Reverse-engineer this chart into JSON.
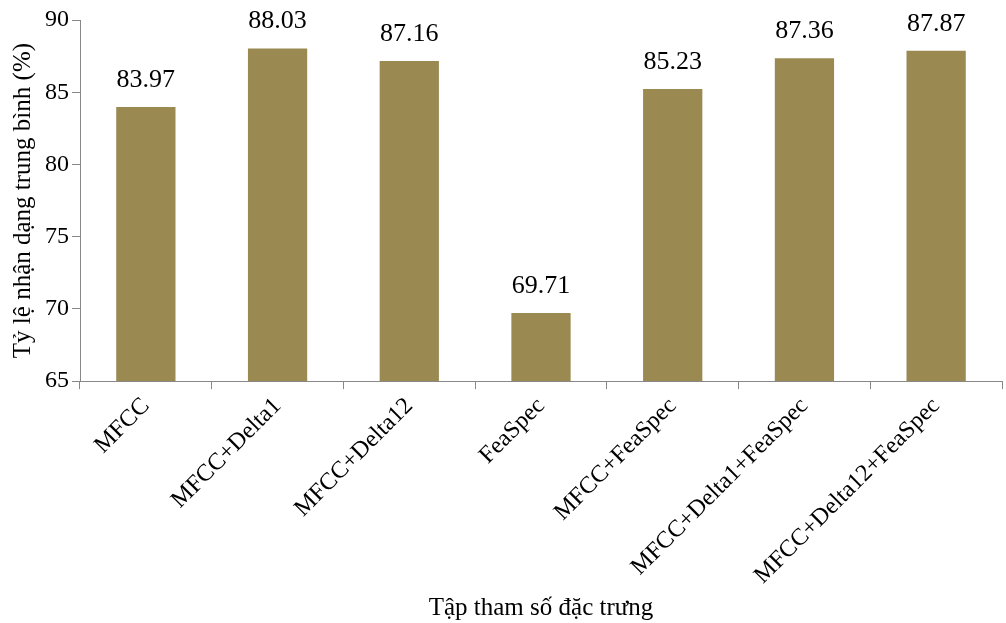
{
  "chart_data": {
    "type": "bar",
    "xlabel": "Tập tham số đặc trưng",
    "ylabel": "Tỷ lệ nhận dạng trung bình (%)",
    "categories": [
      "MFCC",
      "MFCC+Delta1",
      "MFCC+Delta12",
      "FeaSpec",
      "MFCC+FeaSpec",
      "MFCC+Delta1+FeaSpec",
      "MFCC+Delta12+FeaSpec"
    ],
    "values": [
      83.97,
      88.03,
      87.16,
      69.71,
      85.23,
      87.36,
      87.87
    ],
    "color": "#9a8a52",
    "ylim": [
      65,
      90
    ],
    "yticks": [
      65,
      70,
      75,
      80,
      85,
      90
    ],
    "data_labels": true
  }
}
